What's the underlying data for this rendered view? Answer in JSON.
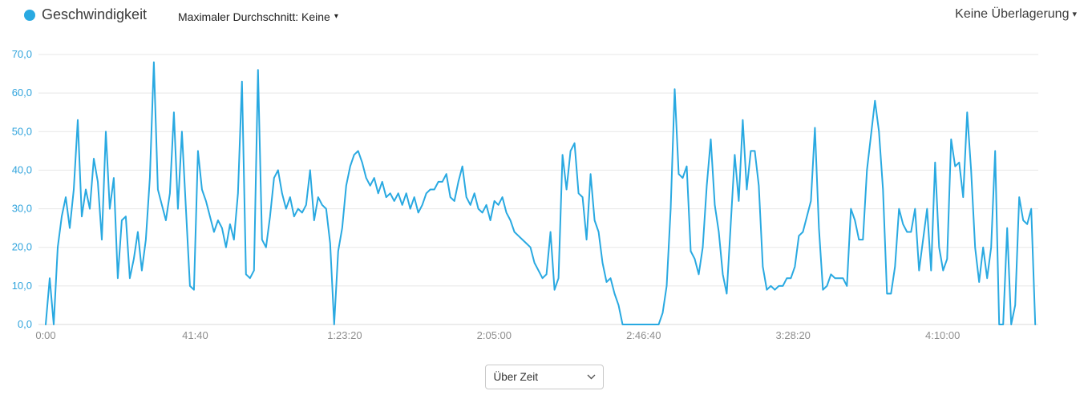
{
  "header": {
    "legend": {
      "label": "Geschwindigkeit",
      "dot_color": "#29a9e1"
    },
    "max_avg_dropdown": {
      "label": "Maximaler Durchschnitt: Keine",
      "caret": "▾"
    },
    "overlay_dropdown": {
      "label": "Keine Überlagerung",
      "caret": "▾"
    }
  },
  "footer": {
    "x_axis_select": {
      "value": "Über Zeit"
    }
  },
  "chart_data": {
    "type": "line",
    "title": "Geschwindigkeit",
    "xlabel": "",
    "ylabel": "",
    "grid": "horizontal",
    "legend_position": "top-left",
    "colors": {
      "line": "#29a9e1",
      "y_tick_label": "#2fa3dc",
      "x_tick_label": "#8e8e8e",
      "gridline": "#e7e7e7",
      "baseline": "#d9d9d9"
    },
    "ylim": [
      0,
      70
    ],
    "xlim_seconds": [
      0,
      16600
    ],
    "y_ticks": {
      "values": [
        0,
        10,
        20,
        30,
        40,
        50,
        60,
        70
      ],
      "labels": [
        "0,0",
        "10,0",
        "20,0",
        "30,0",
        "40,0",
        "50,0",
        "60,0",
        "70,0"
      ]
    },
    "x_ticks": {
      "seconds": [
        0,
        2500,
        5000,
        7500,
        10000,
        12500,
        15000
      ],
      "labels": [
        "0:00",
        "41:40",
        "1:23:20",
        "2:05:00",
        "2:46:40",
        "3:28:20",
        "4:10:00"
      ]
    },
    "series": [
      {
        "name": "Geschwindigkeit",
        "t0_seconds": 0,
        "dt_seconds": 67,
        "values": [
          0,
          12,
          0,
          20,
          28,
          33,
          25,
          35,
          53,
          28,
          35,
          30,
          43,
          37,
          22,
          50,
          30,
          38,
          12,
          27,
          28,
          12,
          17,
          24,
          14,
          22,
          38,
          68,
          35,
          31,
          27,
          34,
          55,
          30,
          50,
          30,
          10,
          9,
          45,
          35,
          32,
          28,
          24,
          27,
          25,
          20,
          26,
          22,
          34,
          63,
          13,
          12,
          14,
          66,
          22,
          20,
          28,
          38,
          40,
          34,
          30,
          33,
          28,
          30,
          29,
          31,
          40,
          27,
          33,
          31,
          30,
          21,
          0,
          19,
          25,
          36,
          41,
          44,
          45,
          42,
          38,
          36,
          38,
          34,
          37,
          33,
          34,
          32,
          34,
          31,
          34,
          30,
          33,
          29,
          31,
          34,
          35,
          35,
          37,
          37,
          39,
          33,
          32,
          37,
          41,
          33,
          31,
          34,
          30,
          29,
          31,
          27,
          32,
          31,
          33,
          29,
          27,
          24,
          23,
          22,
          21,
          20,
          16,
          14,
          12,
          13,
          24,
          9,
          12,
          44,
          35,
          45,
          47,
          34,
          33,
          22,
          39,
          27,
          24,
          16,
          11,
          12,
          8,
          5,
          0,
          0,
          0,
          0,
          0,
          0,
          0,
          0,
          0,
          0,
          3,
          10,
          30,
          61,
          39,
          38,
          41,
          19,
          17,
          13,
          20,
          36,
          48,
          31,
          24,
          13,
          8,
          26,
          44,
          32,
          53,
          35,
          45,
          45,
          36,
          15,
          9,
          10,
          9,
          10,
          10,
          12,
          12,
          15,
          23,
          24,
          28,
          32,
          51,
          25,
          9,
          10,
          13,
          12,
          12,
          12,
          10,
          30,
          27,
          22,
          22,
          40,
          49,
          58,
          50,
          35,
          8,
          8,
          15,
          30,
          26,
          24,
          24,
          30,
          14,
          22,
          30,
          14,
          42,
          20,
          14,
          17,
          48,
          41,
          42,
          33,
          55,
          40,
          20,
          11,
          20,
          12,
          20,
          45,
          0,
          0,
          25,
          0,
          5,
          33,
          27,
          26,
          30,
          0
        ]
      }
    ]
  }
}
